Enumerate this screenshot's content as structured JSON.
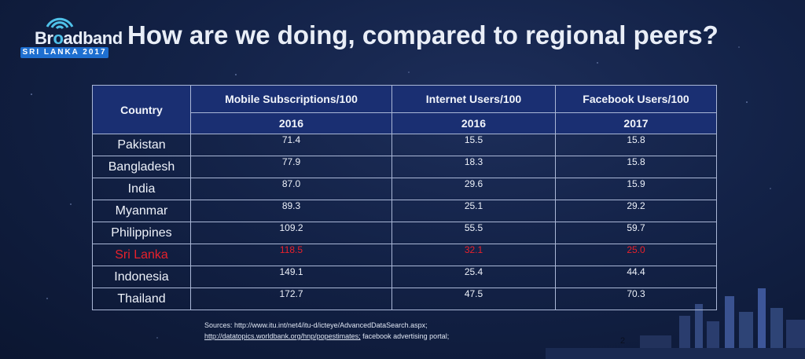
{
  "logo": {
    "word_prefix": "Br",
    "word_o": "o",
    "word_suffix": "adband",
    "band_text": "SRI LANKA 2017"
  },
  "title": "How are we doing, compared to regional peers?",
  "table": {
    "country_header": "Country",
    "columns": [
      {
        "label": "Mobile Subscriptions/100",
        "year": "2016"
      },
      {
        "label": "Internet Users/100",
        "year": "2016"
      },
      {
        "label": "Facebook Users/100",
        "year": "2017"
      }
    ],
    "rows": [
      {
        "country": "Pakistan",
        "mobile": "71.4",
        "internet": "15.5",
        "facebook": "15.8"
      },
      {
        "country": "Bangladesh",
        "mobile": "77.9",
        "internet": "18.3",
        "facebook": "15.8"
      },
      {
        "country": "India",
        "mobile": "87.0",
        "internet": "29.6",
        "facebook": "15.9"
      },
      {
        "country": "Myanmar",
        "mobile": "89.3",
        "internet": "25.1",
        "facebook": "29.2"
      },
      {
        "country": "Philippines",
        "mobile": "109.2",
        "internet": "55.5",
        "facebook": "59.7"
      },
      {
        "country": "Sri Lanka",
        "mobile": "118.5",
        "internet": "32.1",
        "facebook": "25.0"
      },
      {
        "country": "Indonesia",
        "mobile": "149.1",
        "internet": "25.4",
        "facebook": "44.4"
      },
      {
        "country": "Thailand",
        "mobile": "172.7",
        "internet": "47.5",
        "facebook": "70.3"
      }
    ],
    "highlight_color": "#e8212b"
  },
  "sources": {
    "line1": "Sources: http://www.itu.int/net4/itu-d/icteye/AdvancedDataSearch.aspx;",
    "line2_link": "http://datatopics.worldbank.org/hnp/popestimates;",
    "line2_rest": " facebook advertising portal;"
  },
  "page_number": "2"
}
